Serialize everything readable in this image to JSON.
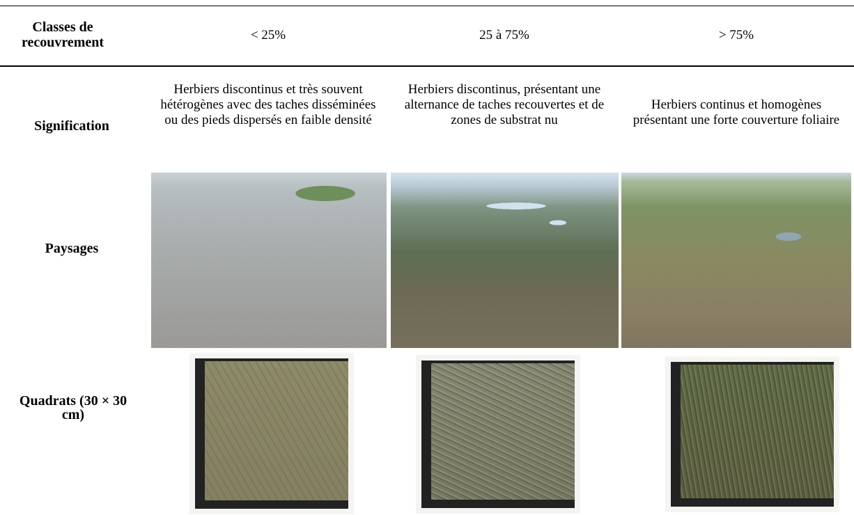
{
  "table": {
    "header": [
      "Classes de recouvrement",
      "< 25%",
      "25 à 75%",
      "> 75%"
    ],
    "rows": [
      {
        "label": "Signification",
        "cells": [
          "Herbiers discontinus et très souvent hétérogènes avec des taches disséminées ou des pieds dispersés en faible densité",
          "Herbiers discontinus, présentant une alternance de taches recouvertes et de zones de substrat nu",
          "Herbiers continus et homogènes présentant une forte couverture foliaire"
        ]
      },
      {
        "label": "Paysages"
      },
      {
        "label": "Quadrats (30 × 30 cm)"
      }
    ]
  }
}
